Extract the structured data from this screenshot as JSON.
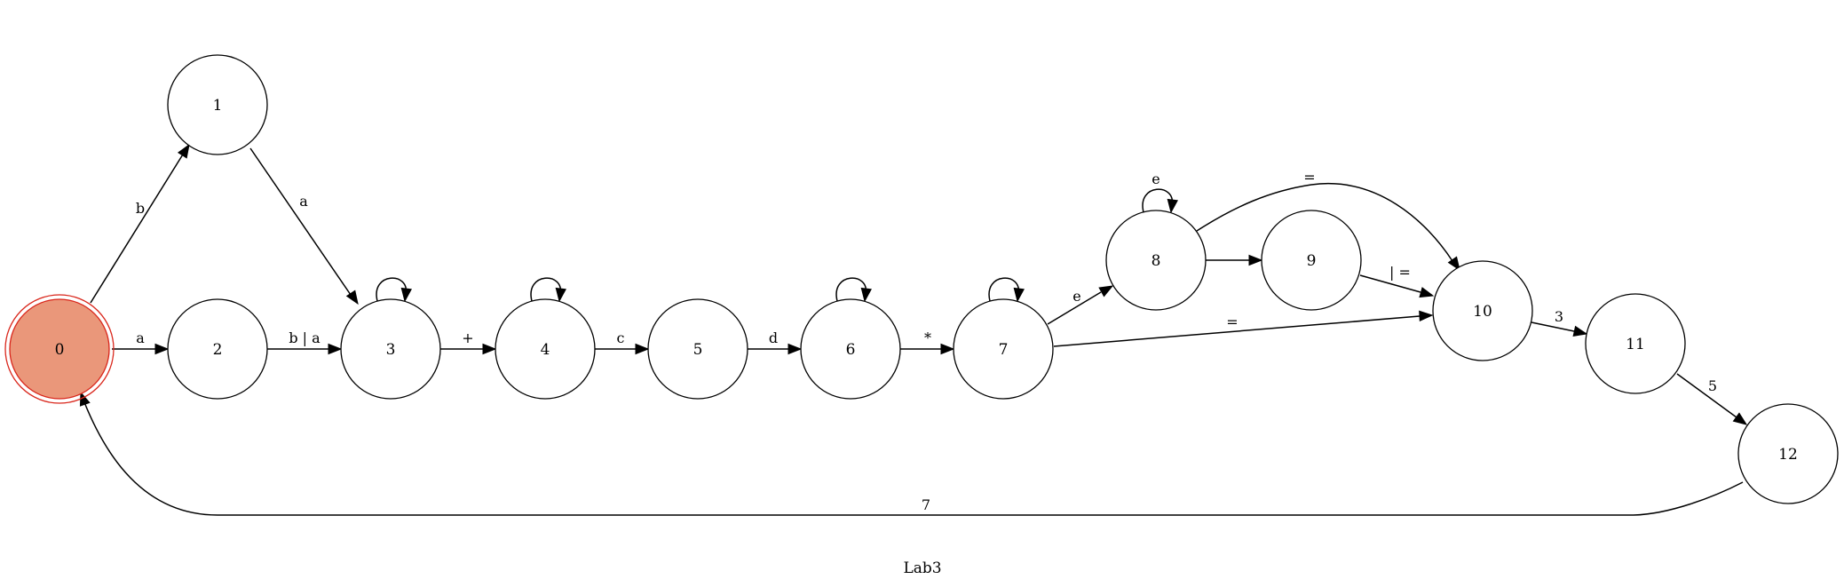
{
  "title": "Lab3",
  "start_state": "0",
  "colors": {
    "start_fill": "#ea977a",
    "start_stroke": "#d9261b"
  },
  "nodes": [
    {
      "id": "0",
      "label": "0"
    },
    {
      "id": "1",
      "label": "1"
    },
    {
      "id": "2",
      "label": "2"
    },
    {
      "id": "3",
      "label": "3"
    },
    {
      "id": "4",
      "label": "4"
    },
    {
      "id": "5",
      "label": "5"
    },
    {
      "id": "6",
      "label": "6"
    },
    {
      "id": "7",
      "label": "7"
    },
    {
      "id": "8",
      "label": "8"
    },
    {
      "id": "9",
      "label": "9"
    },
    {
      "id": "10",
      "label": "10"
    },
    {
      "id": "11",
      "label": "11"
    },
    {
      "id": "12",
      "label": "12"
    }
  ],
  "edges": [
    {
      "from": "0",
      "to": "1",
      "label": "b"
    },
    {
      "from": "0",
      "to": "2",
      "label": "a"
    },
    {
      "from": "1",
      "to": "3",
      "label": "a"
    },
    {
      "from": "2",
      "to": "3",
      "label": "b | a"
    },
    {
      "from": "3",
      "to": "3",
      "label": ""
    },
    {
      "from": "3",
      "to": "4",
      "label": "+"
    },
    {
      "from": "4",
      "to": "4",
      "label": ""
    },
    {
      "from": "4",
      "to": "5",
      "label": "c"
    },
    {
      "from": "5",
      "to": "6",
      "label": "d"
    },
    {
      "from": "6",
      "to": "6",
      "label": ""
    },
    {
      "from": "6",
      "to": "7",
      "label": "*"
    },
    {
      "from": "7",
      "to": "7",
      "label": ""
    },
    {
      "from": "7",
      "to": "8",
      "label": "e"
    },
    {
      "from": "7",
      "to": "10",
      "label": "="
    },
    {
      "from": "8",
      "to": "8",
      "label": "e"
    },
    {
      "from": "8",
      "to": "9",
      "label": ""
    },
    {
      "from": "8",
      "to": "10",
      "label": "="
    },
    {
      "from": "9",
      "to": "10",
      "label": "| ="
    },
    {
      "from": "10",
      "to": "11",
      "label": "3"
    },
    {
      "from": "11",
      "to": "12",
      "label": "5"
    },
    {
      "from": "12",
      "to": "0",
      "label": "7"
    }
  ]
}
